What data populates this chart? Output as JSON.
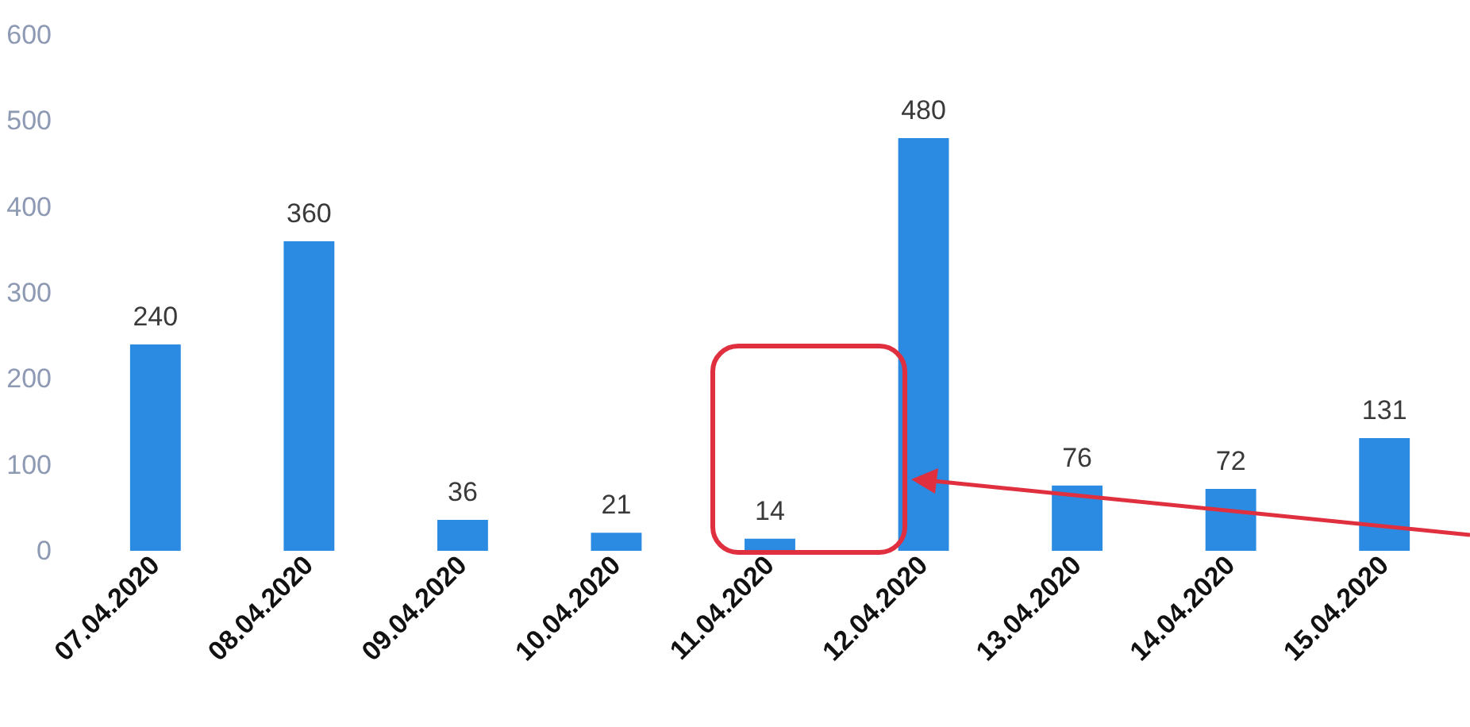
{
  "chart_data": {
    "type": "bar",
    "categories": [
      "07.04.2020",
      "08.04.2020",
      "09.04.2020",
      "10.04.2020",
      "11.04.2020",
      "12.04.2020",
      "13.04.2020",
      "14.04.2020",
      "15.04.2020"
    ],
    "values": [
      240,
      360,
      36,
      21,
      14,
      480,
      76,
      72,
      131
    ],
    "color": "#2b8be3",
    "ylim": [
      0,
      600
    ],
    "yticks": [
      0,
      100,
      200,
      300,
      400,
      500,
      600
    ],
    "data_labels": true
  }
}
